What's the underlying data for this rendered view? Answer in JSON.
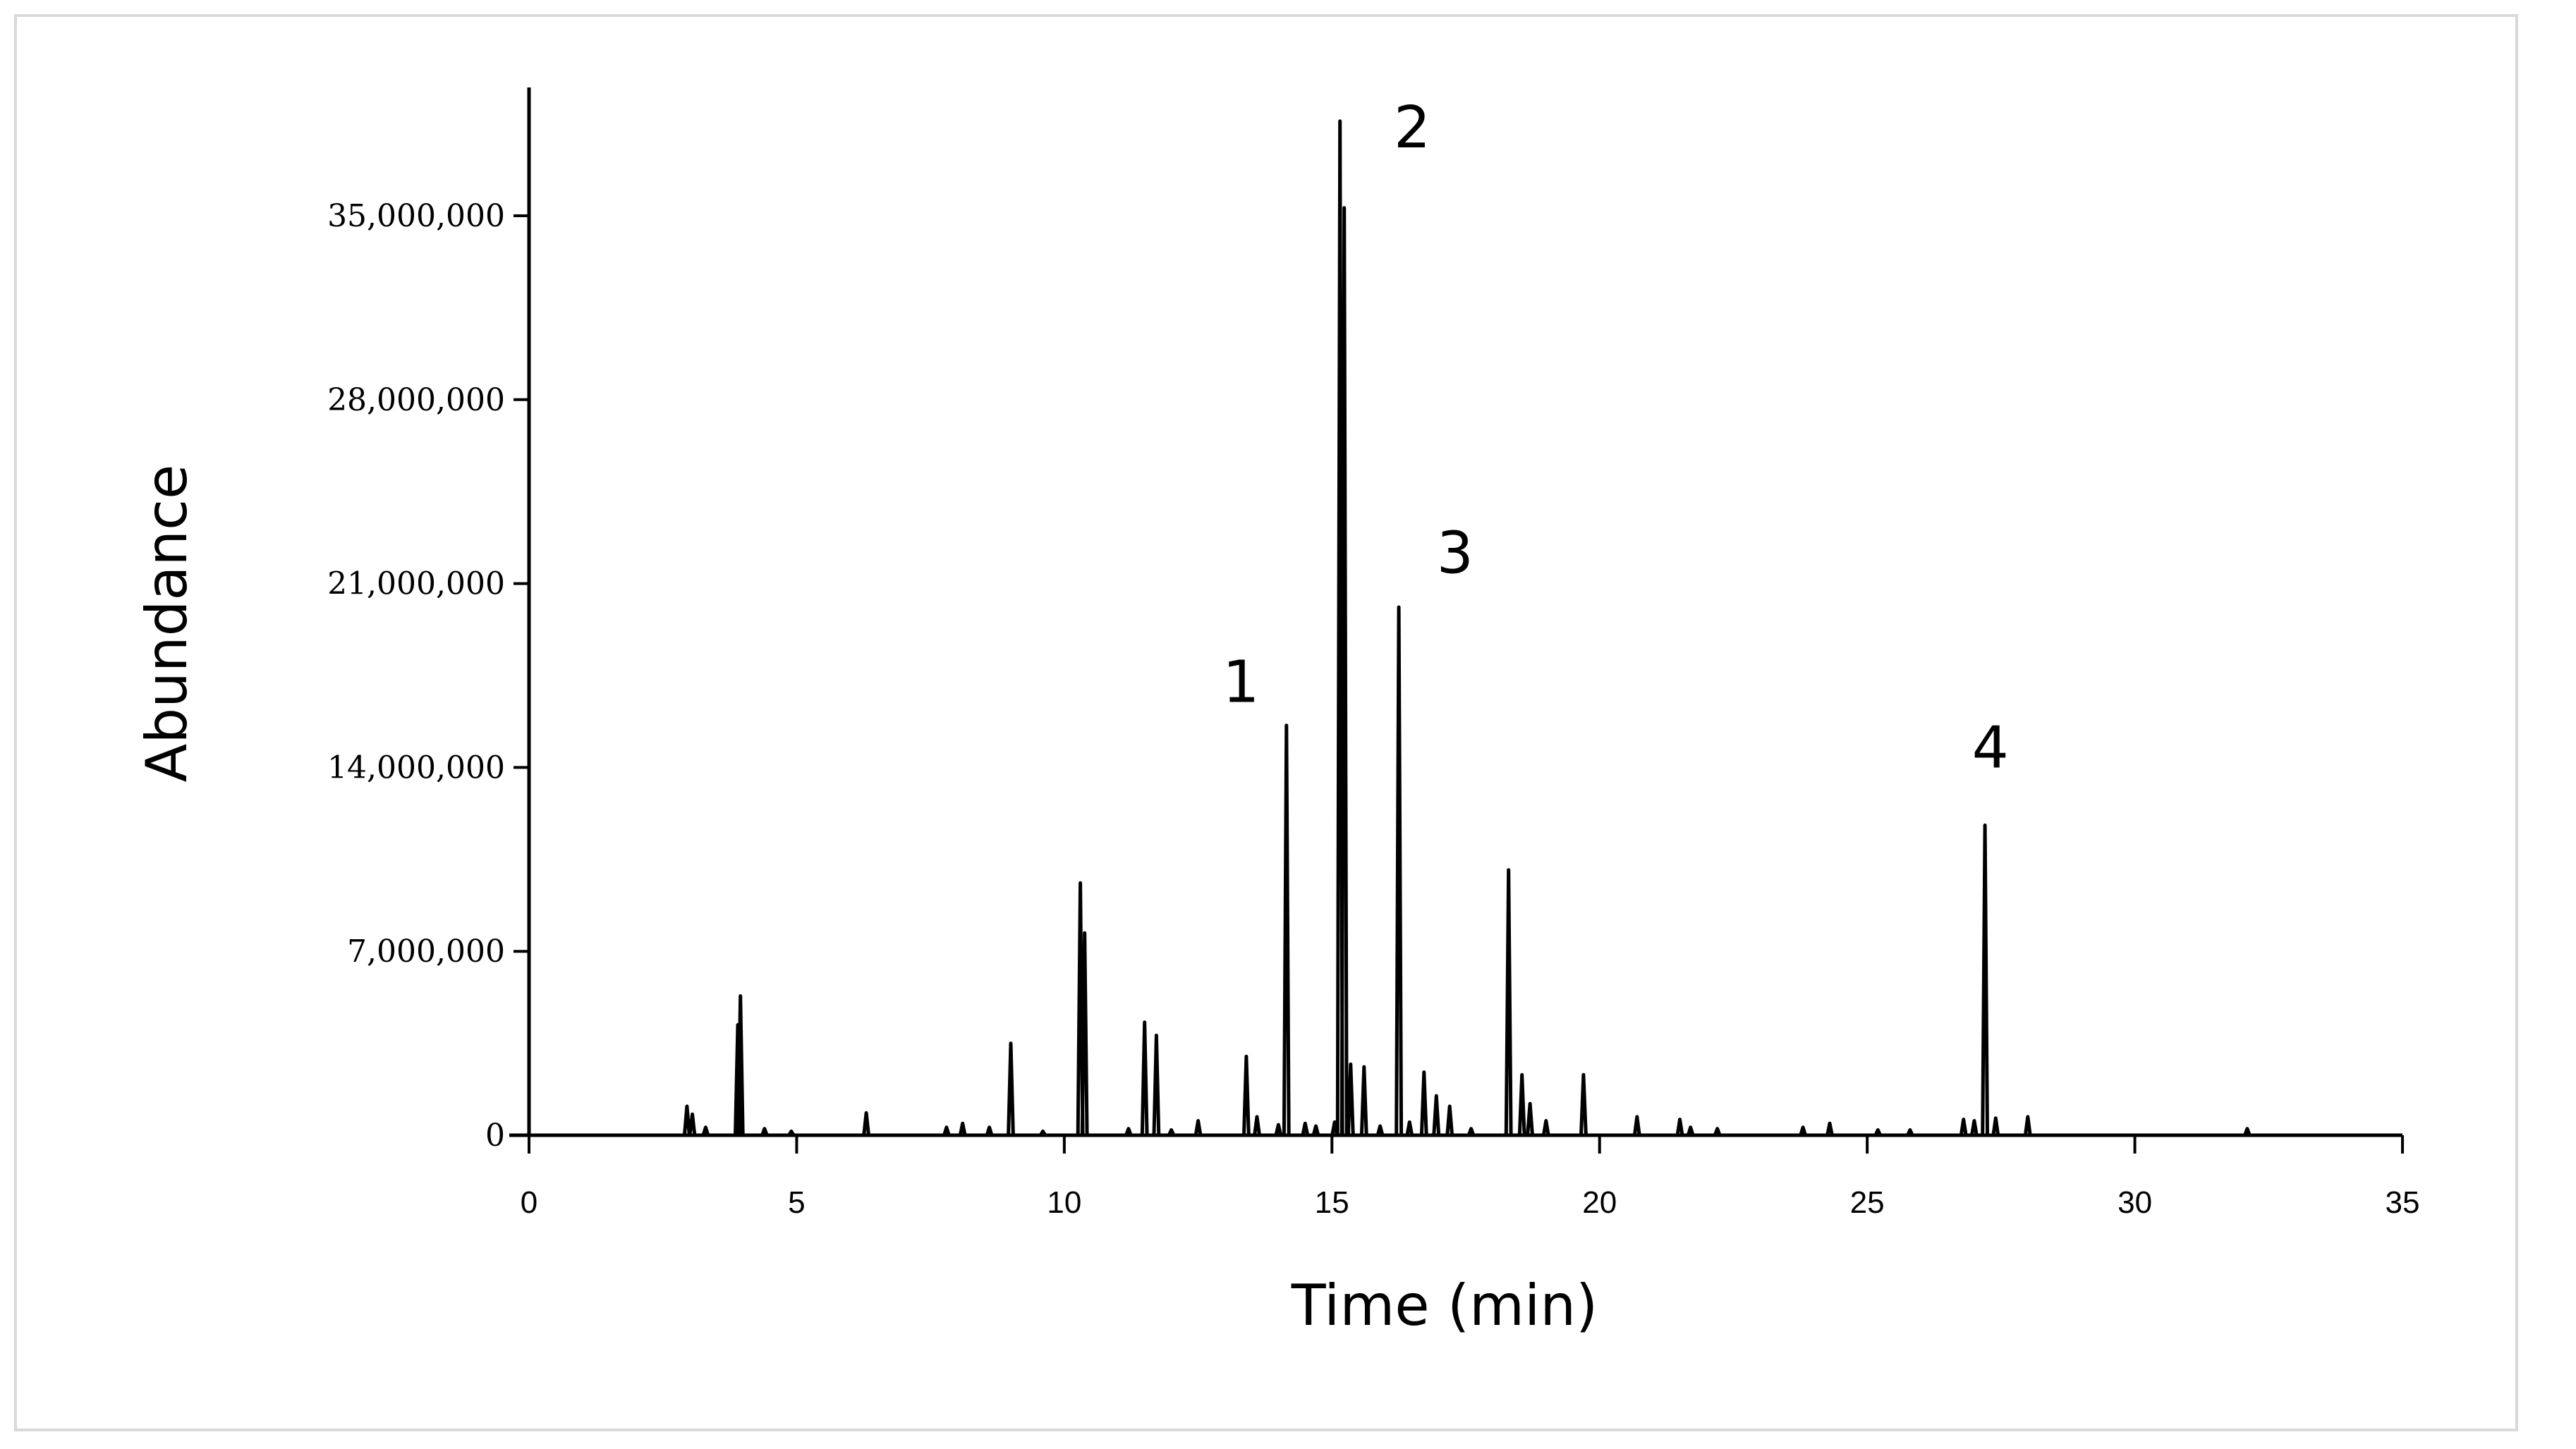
{
  "chart_data": {
    "type": "line",
    "title": "",
    "xlabel": "Time (min)",
    "ylabel": "Abundance",
    "xlim": [
      0,
      35
    ],
    "ylim": [
      0,
      38000000
    ],
    "xticks": [
      0,
      5,
      10,
      15,
      20,
      25,
      30,
      35
    ],
    "xtick_labels": [
      "0",
      "5",
      "10",
      "15",
      "20",
      "25",
      "30",
      "35"
    ],
    "yticks": [
      0,
      7000000,
      14000000,
      21000000,
      28000000,
      35000000
    ],
    "ytick_labels": [
      "0",
      "7,000,000",
      "14,000,000",
      "21,000,000",
      "28,000,000",
      "35,000,000"
    ],
    "grid": false,
    "line_color": "#000000",
    "peaks": [
      {
        "x": 2.95,
        "y": 1100000
      },
      {
        "x": 3.05,
        "y": 800000
      },
      {
        "x": 3.3,
        "y": 300000
      },
      {
        "x": 3.9,
        "y": 4200000
      },
      {
        "x": 3.95,
        "y": 5300000
      },
      {
        "x": 4.4,
        "y": 250000
      },
      {
        "x": 4.9,
        "y": 150000
      },
      {
        "x": 6.3,
        "y": 850000
      },
      {
        "x": 7.8,
        "y": 300000
      },
      {
        "x": 8.1,
        "y": 450000
      },
      {
        "x": 8.6,
        "y": 300000
      },
      {
        "x": 9.0,
        "y": 3500000
      },
      {
        "x": 9.6,
        "y": 150000
      },
      {
        "x": 10.3,
        "y": 9600000
      },
      {
        "x": 10.38,
        "y": 7700000
      },
      {
        "x": 11.2,
        "y": 250000
      },
      {
        "x": 11.5,
        "y": 4300000
      },
      {
        "x": 11.72,
        "y": 3800000
      },
      {
        "x": 12.0,
        "y": 200000
      },
      {
        "x": 12.5,
        "y": 550000
      },
      {
        "x": 13.4,
        "y": 3000000
      },
      {
        "x": 13.6,
        "y": 700000
      },
      {
        "x": 14.0,
        "y": 400000
      },
      {
        "x": 14.15,
        "y": 15600000
      },
      {
        "x": 14.5,
        "y": 450000
      },
      {
        "x": 14.7,
        "y": 350000
      },
      {
        "x": 15.05,
        "y": 500000
      },
      {
        "x": 15.15,
        "y": 38600000
      },
      {
        "x": 15.23,
        "y": 35300000
      },
      {
        "x": 15.35,
        "y": 2700000
      },
      {
        "x": 15.6,
        "y": 2600000
      },
      {
        "x": 15.9,
        "y": 350000
      },
      {
        "x": 16.25,
        "y": 20100000
      },
      {
        "x": 16.45,
        "y": 500000
      },
      {
        "x": 16.72,
        "y": 2400000
      },
      {
        "x": 16.95,
        "y": 1500000
      },
      {
        "x": 17.2,
        "y": 1100000
      },
      {
        "x": 17.6,
        "y": 250000
      },
      {
        "x": 18.3,
        "y": 10100000
      },
      {
        "x": 18.55,
        "y": 2300000
      },
      {
        "x": 18.7,
        "y": 1200000
      },
      {
        "x": 19.0,
        "y": 550000
      },
      {
        "x": 19.7,
        "y": 2300000
      },
      {
        "x": 20.7,
        "y": 700000
      },
      {
        "x": 21.5,
        "y": 600000
      },
      {
        "x": 21.7,
        "y": 300000
      },
      {
        "x": 22.2,
        "y": 250000
      },
      {
        "x": 23.8,
        "y": 300000
      },
      {
        "x": 24.3,
        "y": 450000
      },
      {
        "x": 25.2,
        "y": 200000
      },
      {
        "x": 25.8,
        "y": 200000
      },
      {
        "x": 26.8,
        "y": 600000
      },
      {
        "x": 27.0,
        "y": 550000
      },
      {
        "x": 27.2,
        "y": 11800000
      },
      {
        "x": 27.4,
        "y": 650000
      },
      {
        "x": 28.0,
        "y": 700000
      },
      {
        "x": 32.1,
        "y": 250000
      }
    ],
    "annotations": [
      {
        "label": "1",
        "x": 13.3,
        "y": 16500000
      },
      {
        "label": "2",
        "x": 16.5,
        "y": 37600000
      },
      {
        "label": "3",
        "x": 17.3,
        "y": 21400000
      },
      {
        "label": "4",
        "x": 27.3,
        "y": 14000000
      }
    ]
  }
}
